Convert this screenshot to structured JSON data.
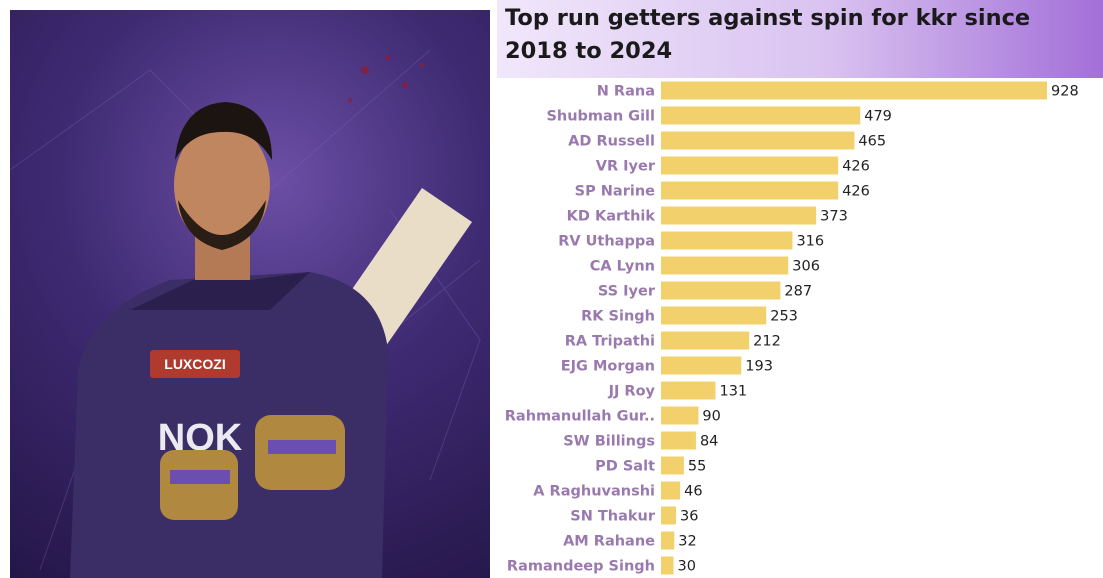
{
  "header": {
    "title": "Top run getters against spin for kkr since 2018 to 2024"
  },
  "photo": {
    "jersey_sponsor": "LUXCOZI",
    "jersey_text": "NOK"
  },
  "colors": {
    "bar": "#f2d06b",
    "category_label": "#9a7aae",
    "photo_background": "#3e2a72",
    "header_gradient_end": "#a26fd8"
  },
  "chart_data": {
    "type": "bar",
    "orientation": "horizontal",
    "title": "Top run getters against spin for kkr since 2018 to 2024",
    "xlabel": "",
    "ylabel": "",
    "categories": [
      "N Rana",
      "Shubman Gill",
      "AD Russell",
      "VR Iyer",
      "SP Narine",
      "KD Karthik",
      "RV Uthappa",
      "CA Lynn",
      "SS Iyer",
      "RK Singh",
      "RA Tripathi",
      "EJG Morgan",
      "JJ Roy",
      "Rahmanullah Gur..",
      "SW Billings",
      "PD Salt",
      "A Raghuvanshi",
      "SN Thakur",
      "AM Rahane",
      "Ramandeep Singh"
    ],
    "values": [
      928,
      479,
      465,
      426,
      426,
      373,
      316,
      306,
      287,
      253,
      212,
      193,
      131,
      90,
      84,
      55,
      46,
      36,
      32,
      30
    ],
    "data_labels": [
      "928",
      "479",
      "465",
      "426",
      "426",
      "373",
      "316",
      "306",
      "287",
      "253",
      "212",
      "193",
      "131",
      "90",
      "84",
      "55",
      "46",
      "36",
      "32",
      "30"
    ],
    "xlim": [
      0,
      928
    ],
    "grid": false,
    "legend": "none"
  }
}
